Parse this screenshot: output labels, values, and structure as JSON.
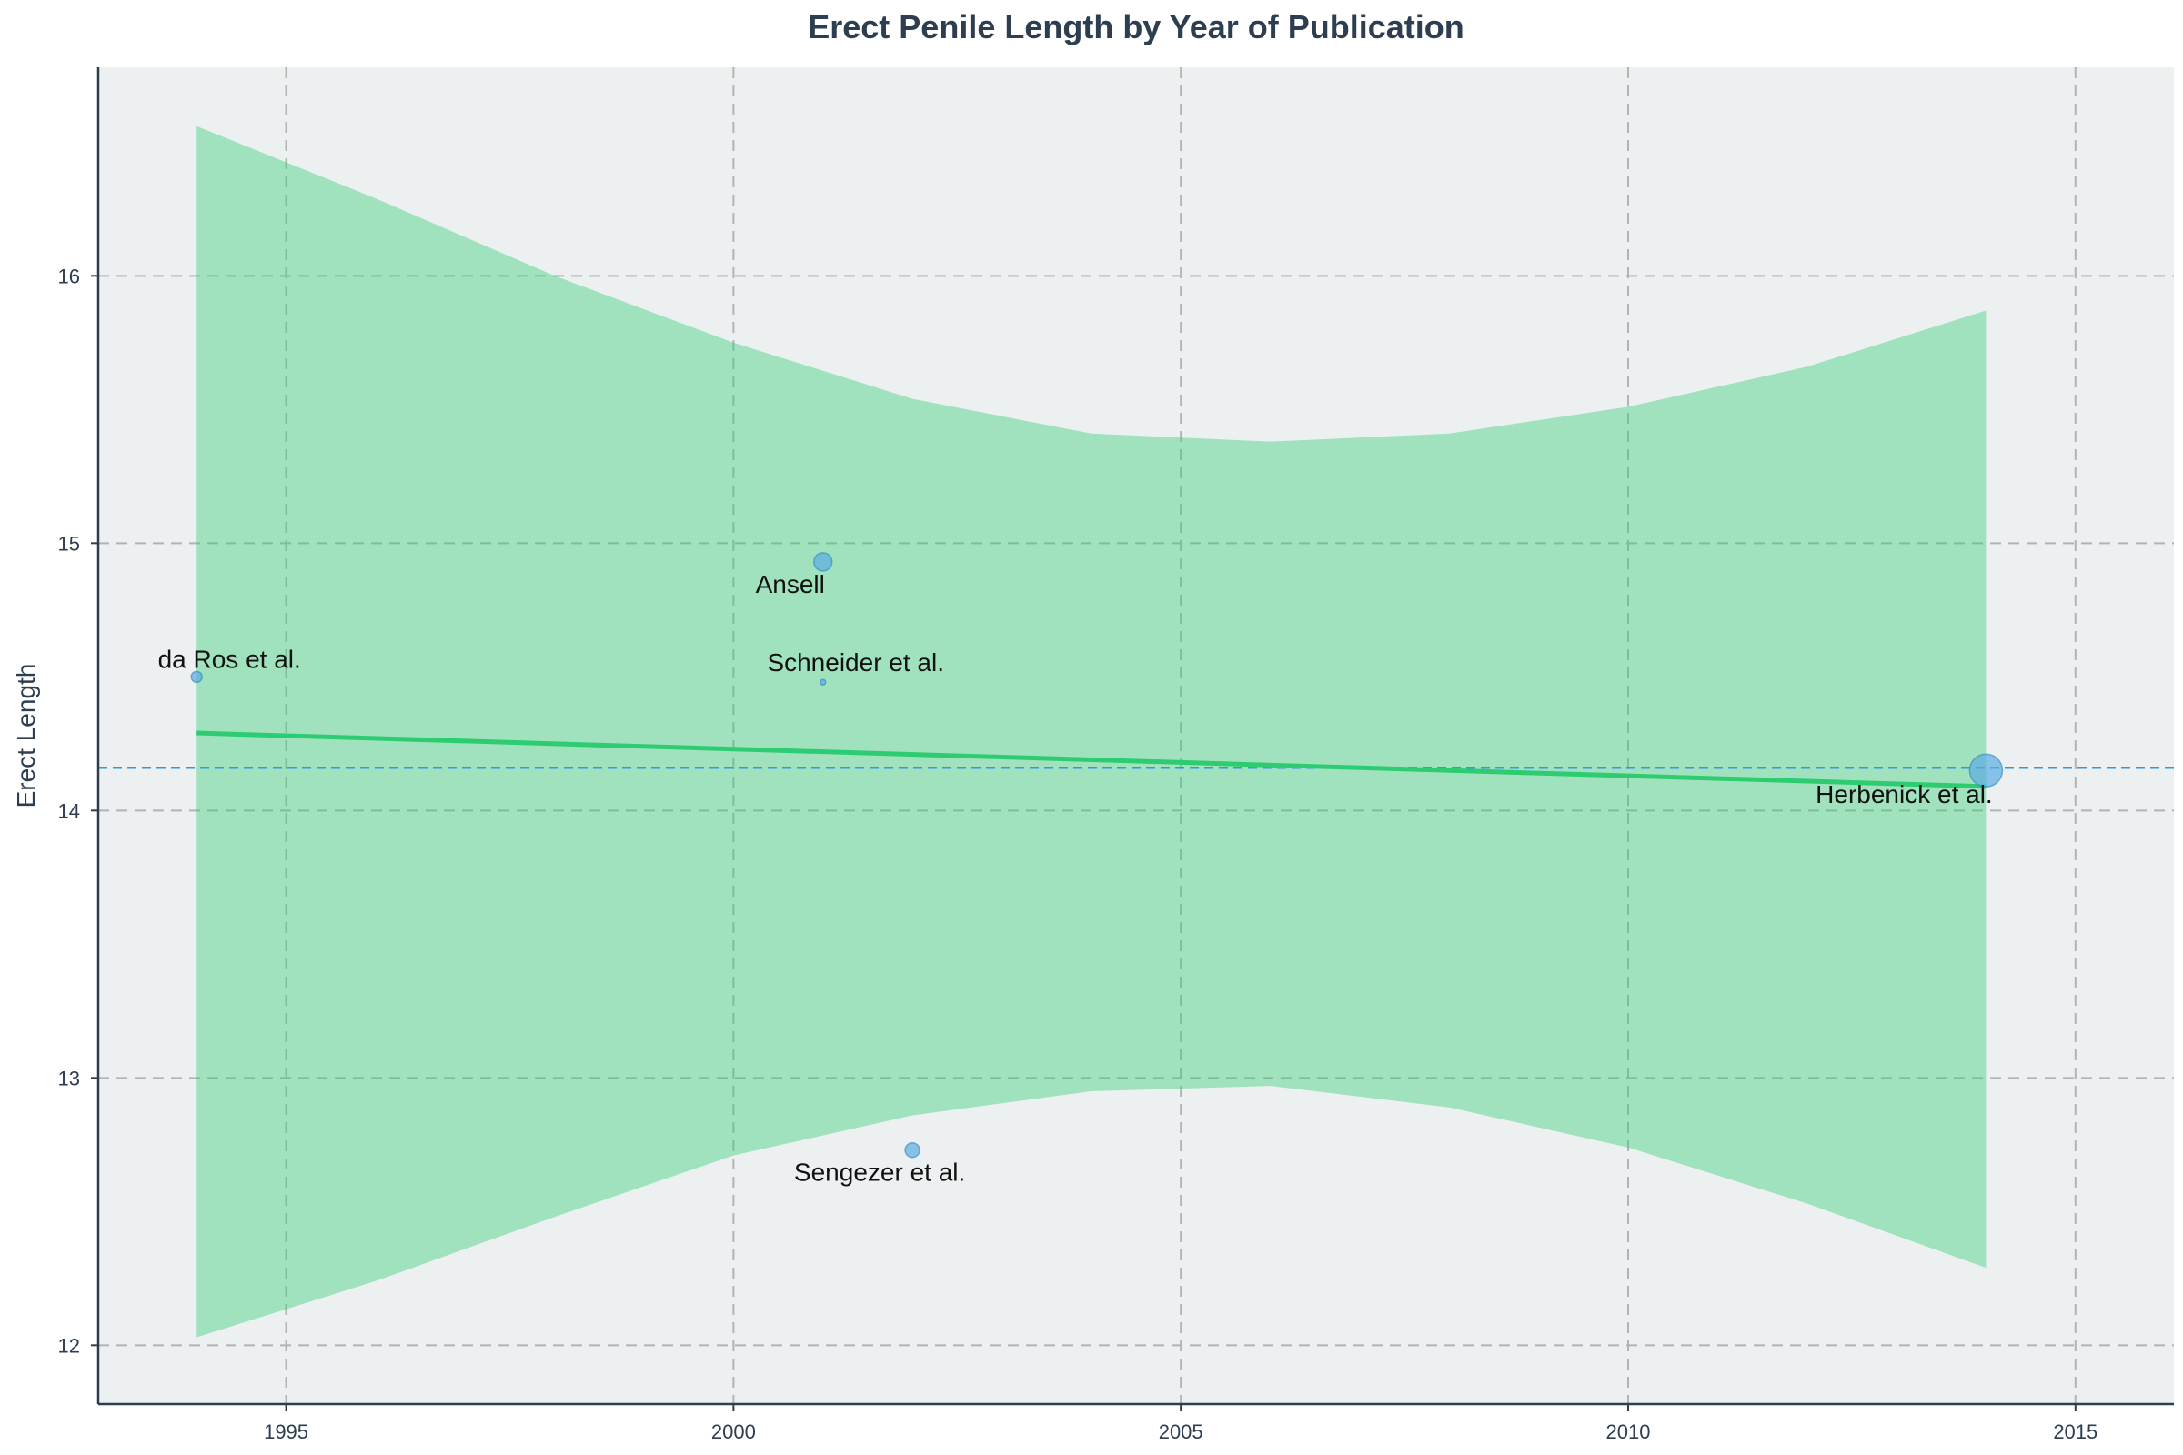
{
  "chart_data": {
    "type": "scatter",
    "title": "Erect Penile Length by Year of Publication",
    "xlabel": "",
    "ylabel": "Erect Length",
    "xlim": [
      1992.9,
      2016.1
    ],
    "ylim": [
      11.78,
      16.78
    ],
    "x_ticks": [
      1995,
      2000,
      2005,
      2010,
      2015
    ],
    "y_ticks": [
      12,
      13,
      14,
      15,
      16
    ],
    "grid": true,
    "points": [
      {
        "label": "da Ros et al.",
        "x": 1994,
        "y": 14.5,
        "size": 6
      },
      {
        "label": "Ansell",
        "x": 2001,
        "y": 14.93,
        "size": 10
      },
      {
        "label": "Schneider et al.",
        "x": 2001,
        "y": 14.48,
        "size": 3
      },
      {
        "label": "Sengezer et al.",
        "x": 2002,
        "y": 12.73,
        "size": 8
      },
      {
        "label": "Herbenick et al.",
        "x": 2014,
        "y": 14.15,
        "size": 18
      }
    ],
    "mean_line": {
      "y": 14.16,
      "color": "#3498db"
    },
    "trend_line": {
      "x": [
        1994,
        2014
      ],
      "y": [
        14.29,
        14.09
      ],
      "color": "#2ecc71"
    },
    "confidence_band": {
      "x": [
        1994,
        1996,
        1998,
        2000,
        2002,
        2004,
        2006,
        2008,
        2010,
        2012,
        2014
      ],
      "upper": [
        16.56,
        16.29,
        16.0,
        15.75,
        15.54,
        15.41,
        15.38,
        15.41,
        15.51,
        15.66,
        15.87
      ],
      "lower": [
        12.03,
        12.24,
        12.48,
        12.71,
        12.86,
        12.95,
        12.97,
        12.89,
        12.74,
        12.53,
        12.29
      ],
      "color": "#2ecc71"
    },
    "colors": {
      "plot_background": "#ecf0f1",
      "point_fill": "#5dade2",
      "point_edge": "#2e86c1",
      "grid": "#b3b3b3",
      "axis": "#2c3e50"
    }
  }
}
